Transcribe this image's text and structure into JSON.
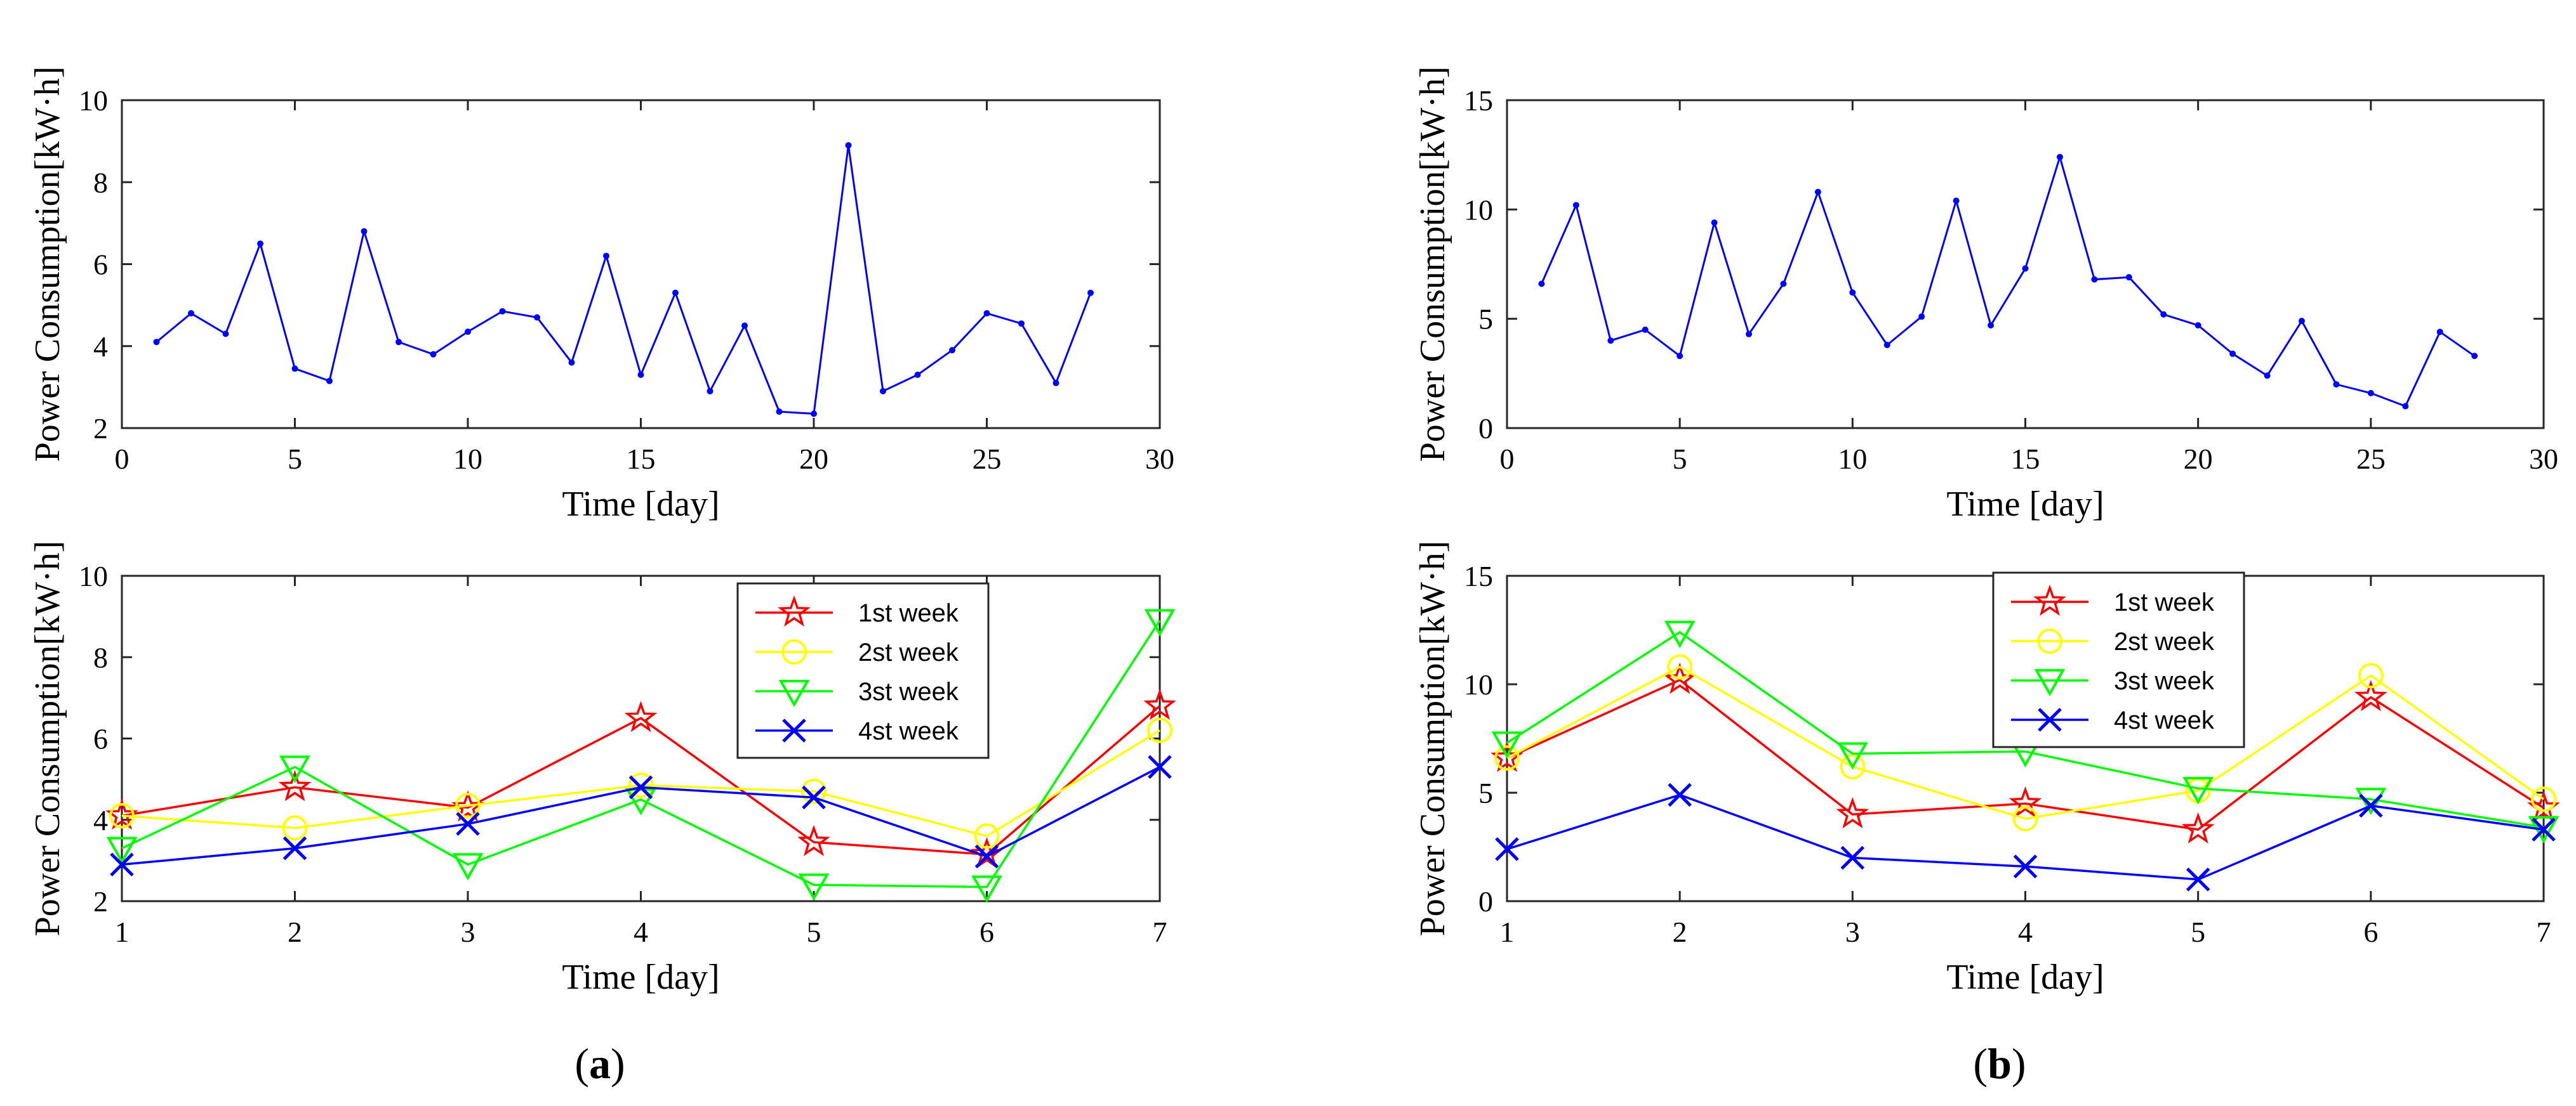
{
  "figure": {
    "panel_labels": [
      {
        "open": "(",
        "letter": "a",
        "close": ")"
      },
      {
        "open": "(",
        "letter": "b",
        "close": ")"
      }
    ]
  },
  "chart_data": [
    {
      "panel": "a-top",
      "type": "line",
      "xlabel": "Time [day]",
      "ylabel": "Power Consumption[kW·h]",
      "xlim": [
        0,
        30
      ],
      "ylim": [
        2,
        10
      ],
      "xticks": [
        0,
        5,
        10,
        15,
        20,
        25,
        30
      ],
      "yticks": [
        2,
        4,
        6,
        8,
        10
      ],
      "grid": false,
      "series": [
        {
          "color": "#0000ff",
          "marker": "dot",
          "x": [
            1,
            2,
            3,
            4,
            5,
            6,
            7,
            8,
            9,
            10,
            11,
            12,
            13,
            14,
            15,
            16,
            17,
            18,
            19,
            20,
            21,
            22,
            23,
            24,
            25,
            26,
            27,
            28
          ],
          "values": [
            4.1,
            4.8,
            4.3,
            6.5,
            3.45,
            3.15,
            6.8,
            4.1,
            3.8,
            4.35,
            4.85,
            4.7,
            3.6,
            6.2,
            3.3,
            5.3,
            2.9,
            4.5,
            2.4,
            2.35,
            8.9,
            2.9,
            3.3,
            3.9,
            4.8,
            4.55,
            3.1,
            5.3
          ]
        }
      ]
    },
    {
      "panel": "a-bottom",
      "type": "line",
      "xlabel": "Time [day]",
      "ylabel": "Power Consumption[kW·h]",
      "xlim": [
        1,
        7
      ],
      "ylim": [
        2,
        10
      ],
      "xticks": [
        1,
        2,
        3,
        4,
        5,
        6,
        7
      ],
      "yticks": [
        2,
        4,
        6,
        8,
        10
      ],
      "grid": false,
      "legend": "top-right",
      "categories": [
        1,
        2,
        3,
        4,
        5,
        6,
        7
      ],
      "series": [
        {
          "name": "1st week",
          "color": "#ff0000",
          "marker": "star",
          "values": [
            4.1,
            4.8,
            4.3,
            6.5,
            3.45,
            3.15,
            6.8
          ]
        },
        {
          "name": "2st week",
          "color": "#ffff00",
          "marker": "circle",
          "values": [
            4.1,
            3.8,
            4.35,
            4.85,
            4.7,
            3.6,
            6.2
          ]
        },
        {
          "name": "3st week",
          "color": "#00ff00",
          "marker": "triangle-down",
          "values": [
            3.3,
            5.3,
            2.9,
            4.5,
            2.4,
            2.35,
            8.9
          ]
        },
        {
          "name": "4st week",
          "color": "#0000ff",
          "marker": "x",
          "values": [
            2.9,
            3.3,
            3.9,
            4.8,
            4.55,
            3.1,
            5.3
          ]
        }
      ]
    },
    {
      "panel": "b-top",
      "type": "line",
      "xlabel": "Time [day]",
      "ylabel": "Power Consumption[kW·h]",
      "xlim": [
        0,
        30
      ],
      "ylim": [
        0,
        15
      ],
      "xticks": [
        0,
        5,
        10,
        15,
        20,
        25,
        30
      ],
      "yticks": [
        0,
        5,
        10,
        15
      ],
      "grid": false,
      "series": [
        {
          "color": "#0000ff",
          "marker": "dot",
          "x": [
            1,
            2,
            3,
            4,
            5,
            6,
            7,
            8,
            9,
            10,
            11,
            12,
            13,
            14,
            15,
            16,
            17,
            18,
            19,
            20,
            21,
            22,
            23,
            24,
            25,
            26,
            27,
            28
          ],
          "values": [
            6.6,
            10.2,
            4.0,
            4.5,
            3.3,
            9.4,
            4.3,
            6.6,
            10.8,
            6.2,
            3.8,
            5.1,
            10.4,
            4.7,
            7.3,
            12.4,
            6.8,
            6.9,
            5.2,
            4.7,
            3.4,
            2.4,
            4.9,
            2.0,
            1.6,
            1.0,
            4.4,
            3.3
          ]
        }
      ]
    },
    {
      "panel": "b-bottom",
      "type": "line",
      "xlabel": "Time [day]",
      "ylabel": "Power Consumption[kW·h]",
      "xlim": [
        1,
        7
      ],
      "ylim": [
        0,
        15
      ],
      "xticks": [
        1,
        2,
        3,
        4,
        5,
        6,
        7
      ],
      "yticks": [
        0,
        5,
        10,
        15
      ],
      "grid": false,
      "legend": "top-left",
      "categories": [
        1,
        2,
        3,
        4,
        5,
        6,
        7
      ],
      "series": [
        {
          "name": "1st week",
          "color": "#ff0000",
          "marker": "star",
          "values": [
            6.6,
            10.2,
            4.0,
            4.5,
            3.3,
            9.4,
            4.3
          ]
        },
        {
          "name": "2st week",
          "color": "#ffff00",
          "marker": "circle",
          "values": [
            6.6,
            10.8,
            6.2,
            3.8,
            5.1,
            10.4,
            4.7
          ]
        },
        {
          "name": "3st week",
          "color": "#00ff00",
          "marker": "triangle-down",
          "values": [
            7.3,
            12.4,
            6.8,
            6.9,
            5.2,
            4.7,
            3.4
          ]
        },
        {
          "name": "4st week",
          "color": "#0000ff",
          "marker": "x",
          "values": [
            2.4,
            4.9,
            2.0,
            1.6,
            1.0,
            4.4,
            3.3
          ]
        }
      ]
    }
  ]
}
